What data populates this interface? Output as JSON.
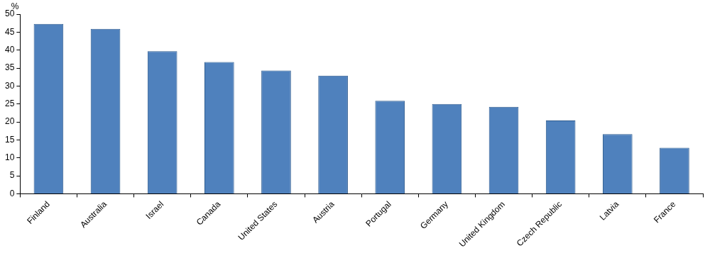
{
  "chart_data": {
    "type": "bar",
    "y_label": "%",
    "categories": [
      "Finland",
      "Australia",
      "Israel",
      "Canada",
      "United States",
      "Austria",
      "Portugal",
      "Germany",
      "United Kingdom",
      "Czech Republic",
      "Latvia",
      "France"
    ],
    "values": [
      47.3,
      45.9,
      39.7,
      36.7,
      34.3,
      32.9,
      25.9,
      25.0,
      24.2,
      20.4,
      16.6,
      12.8
    ],
    "color": "#4f81bd",
    "ylim": [
      0,
      50
    ],
    "yticks": [
      0,
      5,
      10,
      15,
      20,
      25,
      30,
      35,
      40,
      45,
      50
    ],
    "grid": false
  }
}
